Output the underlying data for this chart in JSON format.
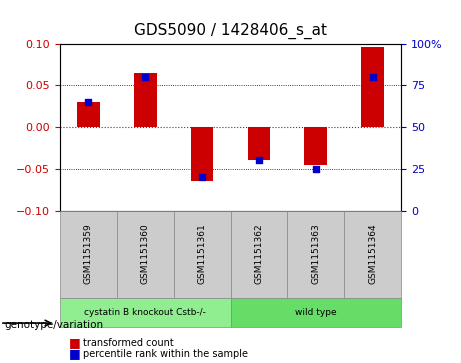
{
  "title": "GDS5090 / 1428406_s_at",
  "samples": [
    "GSM1151359",
    "GSM1151360",
    "GSM1151361",
    "GSM1151362",
    "GSM1151363",
    "GSM1151364"
  ],
  "transformed_count": [
    0.03,
    0.065,
    -0.065,
    -0.04,
    -0.045,
    0.096
  ],
  "percentile_rank": [
    65,
    80,
    20,
    30,
    25,
    80
  ],
  "ylim_left": [
    -0.1,
    0.1
  ],
  "ylim_right": [
    0,
    100
  ],
  "yticks_left": [
    -0.1,
    -0.05,
    0,
    0.05,
    0.1
  ],
  "yticks_right": [
    0,
    25,
    50,
    75,
    100
  ],
  "ytick_labels_right": [
    "0",
    "25",
    "50",
    "75",
    "100%"
  ],
  "bar_color": "#cc0000",
  "dot_color": "#0000cc",
  "bar_width": 0.4,
  "groups": [
    {
      "label": "cystatin B knockout Cstb-/-",
      "samples": [
        0,
        1,
        2
      ],
      "color": "#90ee90"
    },
    {
      "label": "wild type",
      "samples": [
        3,
        4,
        5
      ],
      "color": "#66dd66"
    }
  ],
  "group_label_prefix": "genotype/variation",
  "legend_items": [
    {
      "label": "transformed count",
      "color": "#cc0000"
    },
    {
      "label": "percentile rank within the sample",
      "color": "#0000cc"
    }
  ],
  "hline_zero_color": "#cc0000",
  "hline_dotted_color": "#000000",
  "bg_color": "#ffffff",
  "plot_bg": "#ffffff",
  "tick_area_bg": "#cccccc",
  "grid_color": "#000000",
  "sample_bg": "#cccccc"
}
